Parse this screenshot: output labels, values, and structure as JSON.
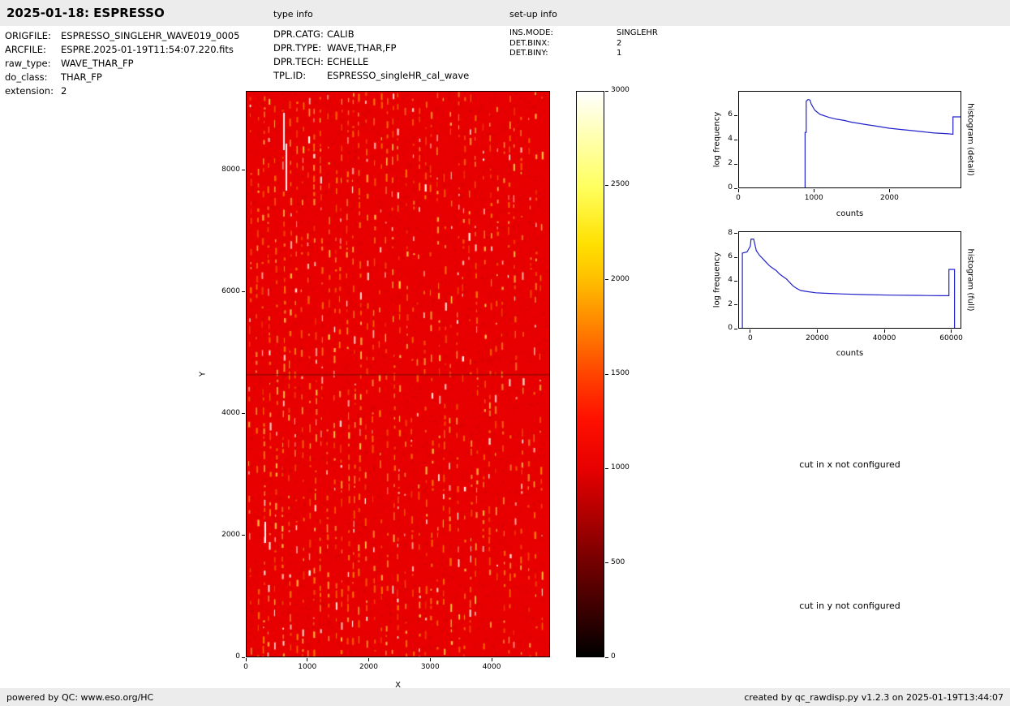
{
  "header": {
    "title": "2025-01-18: ESPRESSO",
    "type_info_label": "type info",
    "setup_info_label": "set-up info"
  },
  "file_info": {
    "rows": [
      {
        "label": "ORIGFILE:",
        "value": "ESPRESSO_SINGLEHR_WAVE019_0005"
      },
      {
        "label": "ARCFILE:",
        "value": "ESPRE.2025-01-19T11:54:07.220.fits"
      },
      {
        "label": "raw_type:",
        "value": "WAVE_THAR_FP"
      },
      {
        "label": "do_class:",
        "value": "THAR_FP"
      },
      {
        "label": "extension:",
        "value": "2"
      }
    ]
  },
  "type_info": {
    "rows": [
      {
        "label": "DPR.CATG:",
        "value": "CALIB"
      },
      {
        "label": "DPR.TYPE:",
        "value": "WAVE,THAR,FP"
      },
      {
        "label": "DPR.TECH:",
        "value": "ECHELLE"
      },
      {
        "label": "TPL.ID:",
        "value": "ESPRESSO_singleHR_cal_wave"
      }
    ]
  },
  "setup_info": {
    "rows": [
      {
        "label": "INS.MODE:",
        "value": "SINGLEHR"
      },
      {
        "label": "DET.BINX:",
        "value": "2"
      },
      {
        "label": "DET.BINY:",
        "value": "1"
      }
    ]
  },
  "messages": {
    "cut_x": "cut in x not configured",
    "cut_y": "cut in y not configured"
  },
  "footer": {
    "left": "powered by QC: www.eso.org/HC",
    "right": "created by qc_rawdisp.py v1.2.3 on 2025-01-19T13:44:07"
  },
  "chart_data": [
    {
      "id": "raw_image",
      "type": "heatmap",
      "xlabel": "X",
      "ylabel": "Y",
      "x_range": [
        0,
        4950
      ],
      "y_range": [
        0,
        9300
      ],
      "xticks": [
        0,
        1000,
        2000,
        3000,
        4000
      ],
      "yticks": [
        0,
        2000,
        4000,
        6000,
        8000
      ],
      "colormap": "hot",
      "value_range": [
        0,
        3000
      ],
      "colorbar_ticks": [
        0,
        500,
        1000,
        1500,
        2000,
        2500,
        3000
      ],
      "background_level_counts": 1100,
      "description": "ESPRESSO raw WAVE,THAR,FP echelle frame: nearly uniform bright red background (~1000-1200 counts) crossed by many vertical dashed columns of brighter yellow/white emission features; a few saturated white streaks near x=600, y=8300-8900 and a faint darker horizontal line near y=4650"
    },
    {
      "id": "histogram_detail",
      "type": "line",
      "right_label": "histogram (detail)",
      "xlabel": "counts",
      "ylabel": "log frequency",
      "x_range": [
        0,
        2950
      ],
      "y_range": [
        0,
        8
      ],
      "xticks": [
        0,
        1000,
        2000
      ],
      "yticks": [
        0,
        2,
        4,
        6
      ],
      "line_color": "#2222cc",
      "points": [
        [
          880,
          0
        ],
        [
          880,
          4.6
        ],
        [
          895,
          4.6
        ],
        [
          895,
          7.2
        ],
        [
          920,
          7.35
        ],
        [
          945,
          7.3
        ],
        [
          960,
          7.0
        ],
        [
          985,
          6.7
        ],
        [
          1010,
          6.45
        ],
        [
          1040,
          6.3
        ],
        [
          1080,
          6.1
        ],
        [
          1130,
          6.0
        ],
        [
          1200,
          5.85
        ],
        [
          1300,
          5.7
        ],
        [
          1400,
          5.6
        ],
        [
          1500,
          5.45
        ],
        [
          1600,
          5.35
        ],
        [
          1700,
          5.25
        ],
        [
          1800,
          5.15
        ],
        [
          1900,
          5.05
        ],
        [
          2000,
          4.95
        ],
        [
          2150,
          4.85
        ],
        [
          2300,
          4.75
        ],
        [
          2450,
          4.65
        ],
        [
          2600,
          4.55
        ],
        [
          2750,
          4.5
        ],
        [
          2850,
          4.45
        ],
        [
          2850,
          5.9
        ],
        [
          2950,
          5.9
        ]
      ]
    },
    {
      "id": "histogram_full",
      "type": "line",
      "right_label": "histogram (full)",
      "xlabel": "counts",
      "ylabel": "log frequency",
      "x_range": [
        -3600,
        63000
      ],
      "y_range": [
        0,
        8.2
      ],
      "xticks": [
        0,
        20000,
        40000,
        60000
      ],
      "yticks": [
        0,
        2,
        4,
        6,
        8
      ],
      "line_color": "#2222cc",
      "points": [
        [
          -2600,
          0
        ],
        [
          -2600,
          6.4
        ],
        [
          -1200,
          6.5
        ],
        [
          -200,
          7.0
        ],
        [
          0,
          7.6
        ],
        [
          800,
          7.6
        ],
        [
          1600,
          6.6
        ],
        [
          2600,
          6.2
        ],
        [
          3600,
          5.9
        ],
        [
          4600,
          5.6
        ],
        [
          5600,
          5.3
        ],
        [
          6600,
          5.1
        ],
        [
          7600,
          4.9
        ],
        [
          8600,
          4.6
        ],
        [
          9600,
          4.4
        ],
        [
          10600,
          4.2
        ],
        [
          11600,
          3.9
        ],
        [
          12600,
          3.6
        ],
        [
          13600,
          3.4
        ],
        [
          15000,
          3.2
        ],
        [
          17000,
          3.1
        ],
        [
          19500,
          3.0
        ],
        [
          23000,
          2.95
        ],
        [
          28000,
          2.9
        ],
        [
          34000,
          2.85
        ],
        [
          42000,
          2.8
        ],
        [
          50000,
          2.78
        ],
        [
          57000,
          2.75
        ],
        [
          59500,
          2.75
        ],
        [
          59500,
          5.0
        ],
        [
          61200,
          5.0
        ],
        [
          61200,
          0
        ]
      ]
    }
  ]
}
